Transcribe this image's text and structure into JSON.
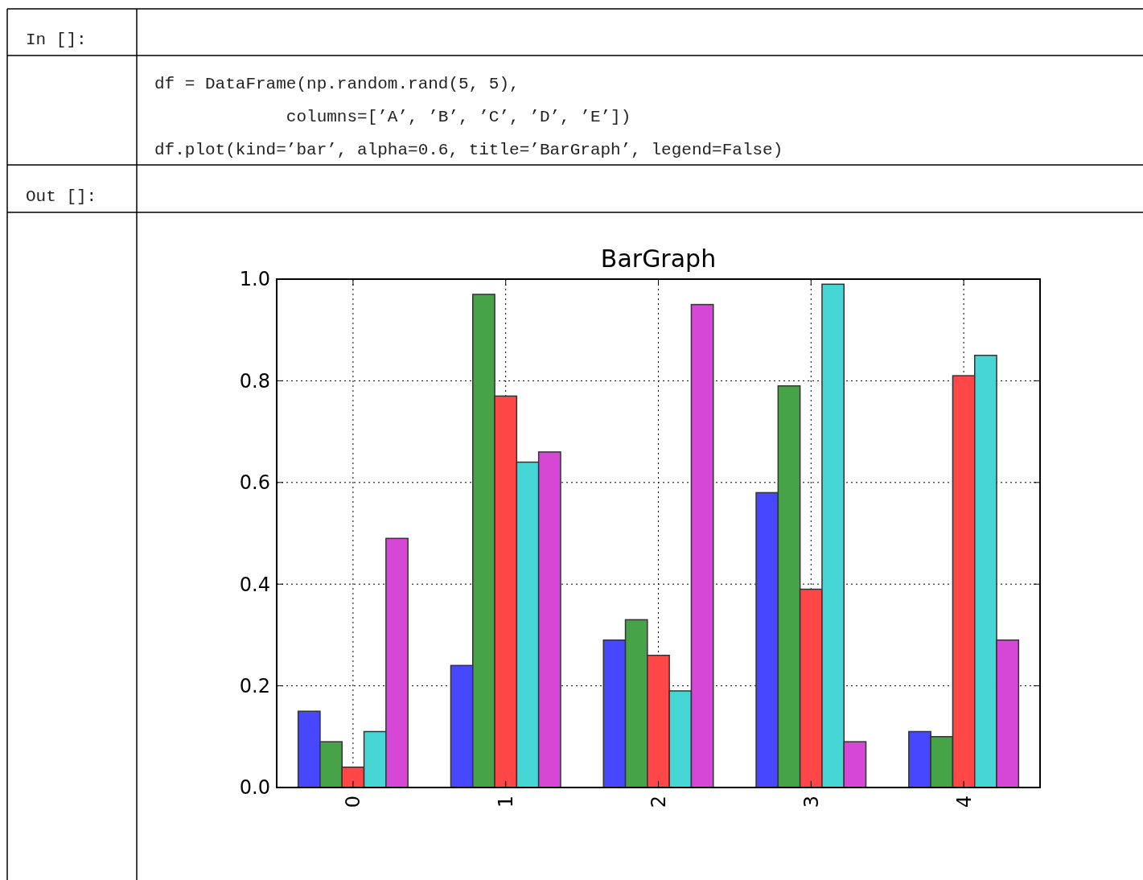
{
  "chart_data": {
    "type": "bar",
    "title": "BarGraph",
    "categories": [
      "0",
      "1",
      "2",
      "3",
      "4"
    ],
    "series": [
      {
        "color": "#4747ff",
        "values": [
          0.15,
          0.24,
          0.29,
          0.58,
          0.11
        ]
      },
      {
        "color": "#47a347",
        "values": [
          0.09,
          0.97,
          0.33,
          0.79,
          0.1
        ]
      },
      {
        "color": "#ff4747",
        "values": [
          0.04,
          0.77,
          0.26,
          0.39,
          0.81
        ]
      },
      {
        "color": "#47d6d6",
        "values": [
          0.11,
          0.64,
          0.19,
          0.99,
          0.85
        ]
      },
      {
        "color": "#d647d6",
        "values": [
          0.49,
          0.66,
          0.95,
          0.09,
          0.29
        ]
      }
    ],
    "ylim": [
      0,
      1
    ],
    "yticks": [
      {
        "value": 0,
        "label": "0.0"
      },
      0.2,
      0.4,
      0.6,
      0.8,
      {
        "value": 1,
        "label": "1.0"
      }
    ],
    "grid": true,
    "annotations": [
      "In []:",
      "df = DataFrame(np.random.rand(5, 5),",
      "             columns=[’A’, ’B’, ’C’, ’D’, ’E’])",
      "df.plot(kind=’bar’, alpha=0.6, title=’BarGraph’, legend=False)",
      "Out []:"
    ]
  }
}
